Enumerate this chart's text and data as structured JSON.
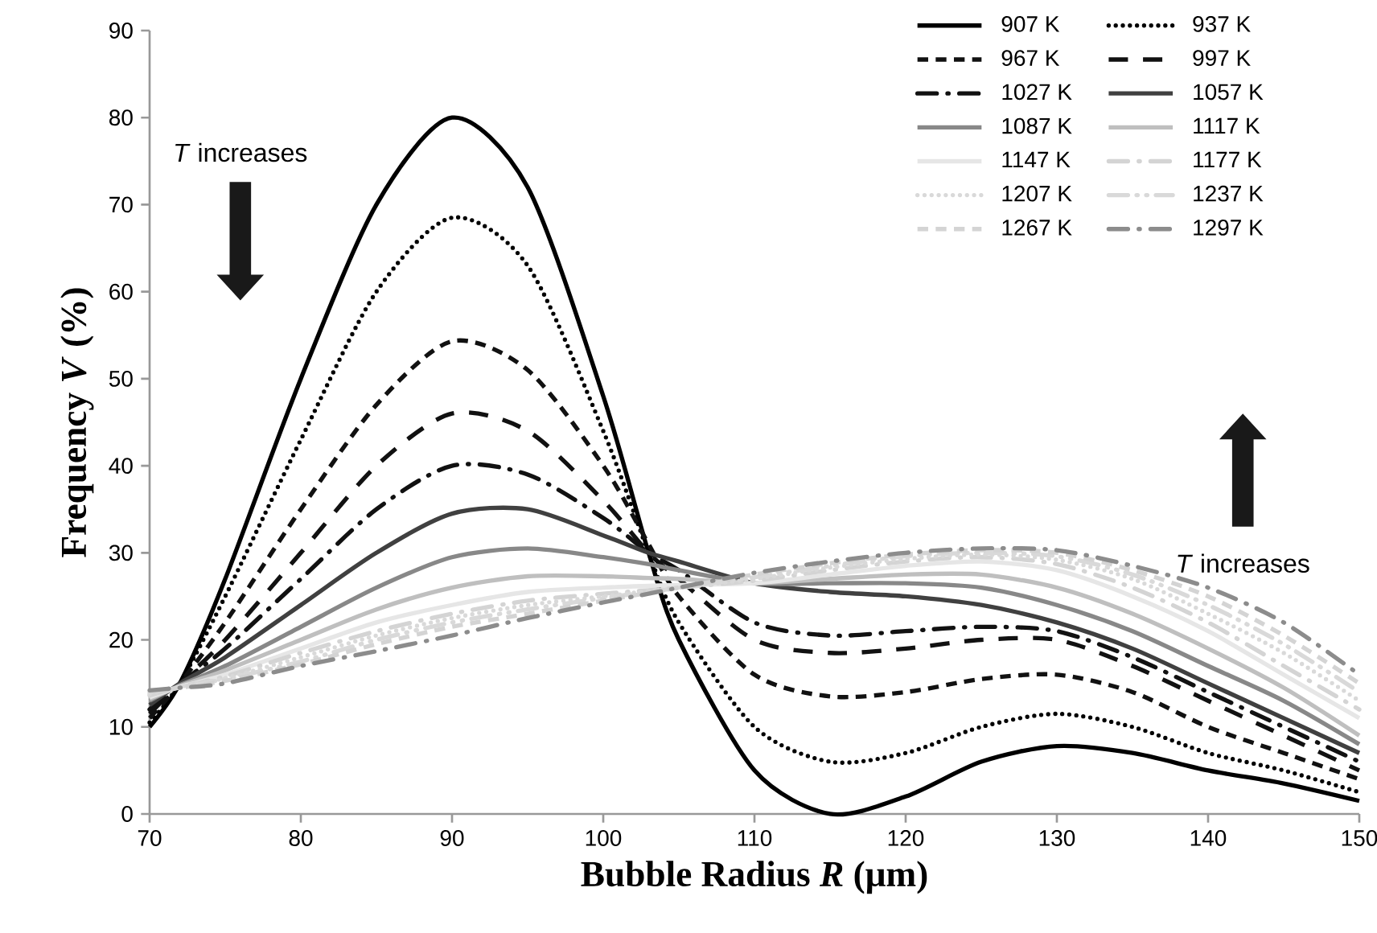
{
  "chart_data": {
    "type": "line",
    "xlabel": "Bubble Radius *R* (μm)",
    "ylabel": "Frequency *V* (%)",
    "x": [
      70,
      72,
      75,
      80,
      85,
      90,
      95,
      100,
      103,
      105,
      110,
      115,
      120,
      125,
      130,
      135,
      140,
      145,
      150
    ],
    "series": [
      {
        "name": "907 K",
        "color": "#000000",
        "line_style": "solid",
        "values": [
          10,
          15,
          27,
          50,
          70,
          80,
          72,
          48,
          30,
          20,
          5,
          0,
          2,
          6,
          7.8,
          7,
          5,
          3.5,
          1.5
        ]
      },
      {
        "name": "937 K",
        "color": "#000000",
        "line_style": "dotted",
        "values": [
          10.5,
          15,
          25,
          43,
          60,
          68.5,
          63,
          44,
          30,
          22,
          10,
          6,
          7,
          10,
          11.5,
          10,
          7,
          5,
          2.5
        ]
      },
      {
        "name": "967 K",
        "color": "#111111",
        "line_style": "dashed",
        "values": [
          11,
          15,
          22,
          35,
          47,
          54.3,
          51,
          40,
          31,
          25,
          16,
          13.5,
          14,
          15.5,
          16,
          14,
          10,
          7,
          4
        ]
      },
      {
        "name": "997 K",
        "color": "#111111",
        "line_style": "long dashed",
        "values": [
          11.5,
          15,
          20,
          30,
          40,
          46,
          44,
          36,
          30,
          27,
          20,
          18.5,
          19,
          20,
          20,
          17,
          13,
          9,
          5
        ]
      },
      {
        "name": "1027 K",
        "color": "#111111",
        "line_style": "dashdot",
        "values": [
          12,
          15,
          19,
          27,
          35,
          40,
          39,
          34,
          30,
          28,
          22,
          20.5,
          21,
          21.5,
          21,
          18,
          14,
          10,
          6
        ]
      },
      {
        "name": "1057 K",
        "color": "#404040",
        "line_style": "solid",
        "values": [
          12.5,
          15,
          18,
          24,
          30,
          34.5,
          35,
          32,
          30,
          29,
          26.5,
          25.5,
          25,
          24,
          22,
          19,
          15,
          11,
          7
        ]
      },
      {
        "name": "1087 K",
        "color": "#888888",
        "line_style": "solid",
        "values": [
          13,
          14.8,
          17,
          21.5,
          26,
          29.5,
          30.5,
          29.5,
          28.7,
          28,
          26.5,
          26.5,
          26.5,
          26,
          24,
          21,
          17,
          13,
          8
        ]
      },
      {
        "name": "1117 K",
        "color": "#bfbfbf",
        "line_style": "solid",
        "values": [
          13.2,
          14.7,
          16.5,
          20,
          23.5,
          26,
          27.3,
          27.3,
          27.1,
          27,
          26.5,
          27,
          27.5,
          27.5,
          26,
          23,
          19,
          14.5,
          9
        ]
      },
      {
        "name": "1147 K",
        "color": "#e6e6e6",
        "line_style": "solid",
        "values": [
          13.4,
          14.6,
          16,
          19,
          22,
          24,
          25.5,
          26,
          26.2,
          26.3,
          26.5,
          27.5,
          28.5,
          29,
          28,
          25,
          21,
          16,
          11
        ]
      },
      {
        "name": "1177 K",
        "color": "#d4d4d4",
        "line_style": "dashdot",
        "values": [
          13.6,
          14.6,
          15.8,
          18.5,
          21,
          23,
          24.5,
          25.3,
          25.7,
          26,
          26.8,
          28,
          29,
          29.5,
          28.7,
          26,
          22,
          17,
          12
        ]
      },
      {
        "name": "1207 K",
        "color": "#d9d9d9",
        "line_style": "dotted",
        "values": [
          13.8,
          14.6,
          15.6,
          18,
          20.5,
          22.5,
          24,
          25,
          25.6,
          26,
          27,
          28.3,
          29.3,
          29.8,
          29.2,
          27,
          23,
          18.5,
          13
        ]
      },
      {
        "name": "1237 K",
        "color": "#d9d9d9",
        "line_style": "dashdotdot",
        "values": [
          14,
          14.6,
          15.5,
          17.5,
          20,
          22,
          23.5,
          24.8,
          25.5,
          26,
          27.2,
          28.5,
          29.6,
          30,
          29.6,
          27.5,
          24,
          19.5,
          14
        ]
      },
      {
        "name": "1267 K",
        "color": "#d4d4d4",
        "line_style": "dashed",
        "values": [
          14,
          14.5,
          15.3,
          17.2,
          19.5,
          21.5,
          23,
          24.5,
          25.4,
          26,
          27.5,
          28.8,
          29.8,
          30.3,
          30,
          28,
          25,
          20.5,
          15
        ]
      },
      {
        "name": "1297 K",
        "color": "#8c8c8c",
        "line_style": "dashdot",
        "values": [
          14.2,
          14.5,
          15,
          17,
          18.7,
          20.5,
          22.5,
          24.3,
          25.3,
          26,
          27.7,
          29,
          30,
          30.5,
          30.3,
          28.5,
          26,
          22,
          16
        ]
      }
    ],
    "xlim": [
      70,
      150
    ],
    "ylim": [
      0,
      90
    ],
    "xticks": [
      70,
      80,
      90,
      100,
      110,
      120,
      130,
      140,
      150
    ],
    "yticks": [
      0,
      10,
      20,
      30,
      40,
      50,
      60,
      70,
      80,
      90
    ],
    "grid": false,
    "legend": "top right",
    "annotations": [
      "*T* increases",
      "*T* increases"
    ]
  }
}
